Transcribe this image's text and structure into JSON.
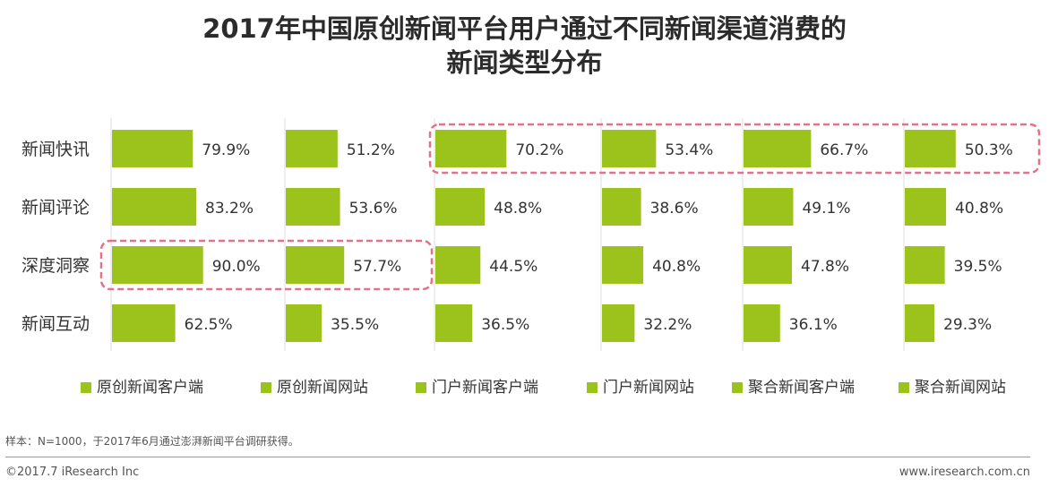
{
  "title_line1": "2017年中国原创新闻平台用户通过不同新闻渠道消费的",
  "title_line2": "新闻类型分布",
  "chart_data": {
    "type": "bar",
    "orientation": "horizontal",
    "categories": [
      "新闻快讯",
      "新闻评论",
      "深度洞察",
      "新闻互动"
    ],
    "series": [
      {
        "name": "原创新闻客户端",
        "values": [
          79.9,
          83.2,
          90.0,
          62.5
        ],
        "labels": [
          "79.9%",
          "83.2%",
          "90.0%",
          "62.5%"
        ]
      },
      {
        "name": "原创新闻网站",
        "values": [
          51.2,
          53.6,
          57.7,
          35.5
        ],
        "labels": [
          "51.2%",
          "53.6%",
          "57.7%",
          "35.5%"
        ]
      },
      {
        "name": "门户新闻客户端",
        "values": [
          70.2,
          48.8,
          44.5,
          36.5
        ],
        "labels": [
          "70.2%",
          "48.8%",
          "44.5%",
          "36.5%"
        ]
      },
      {
        "name": "门户新闻网站",
        "values": [
          53.4,
          38.6,
          40.8,
          32.2
        ],
        "labels": [
          "53.4%",
          "38.6%",
          "40.8%",
          "32.2%"
        ]
      },
      {
        "name": "聚合新闻客户端",
        "values": [
          66.7,
          49.1,
          47.8,
          36.1
        ],
        "labels": [
          "66.7%",
          "49.1%",
          "47.8%",
          "36.1%"
        ]
      },
      {
        "name": "聚合新闻网站",
        "values": [
          50.3,
          40.8,
          39.5,
          29.3
        ],
        "labels": [
          "50.3%",
          "40.8%",
          "39.5%",
          "29.3%"
        ]
      }
    ],
    "unit": "%",
    "highlights": [
      "新闻快讯 row in 门户/聚合 panels",
      "深度洞察 row in 原创 panels"
    ],
    "bar_color": "#9bc31c",
    "highlight_color": "#e0738a"
  },
  "note": "样本：N=1000，于2017年6月通过澎湃新闻平台调研获得。",
  "footer_left": "©2017.7 iResearch Inc",
  "footer_right": "www.iresearch.com.cn"
}
